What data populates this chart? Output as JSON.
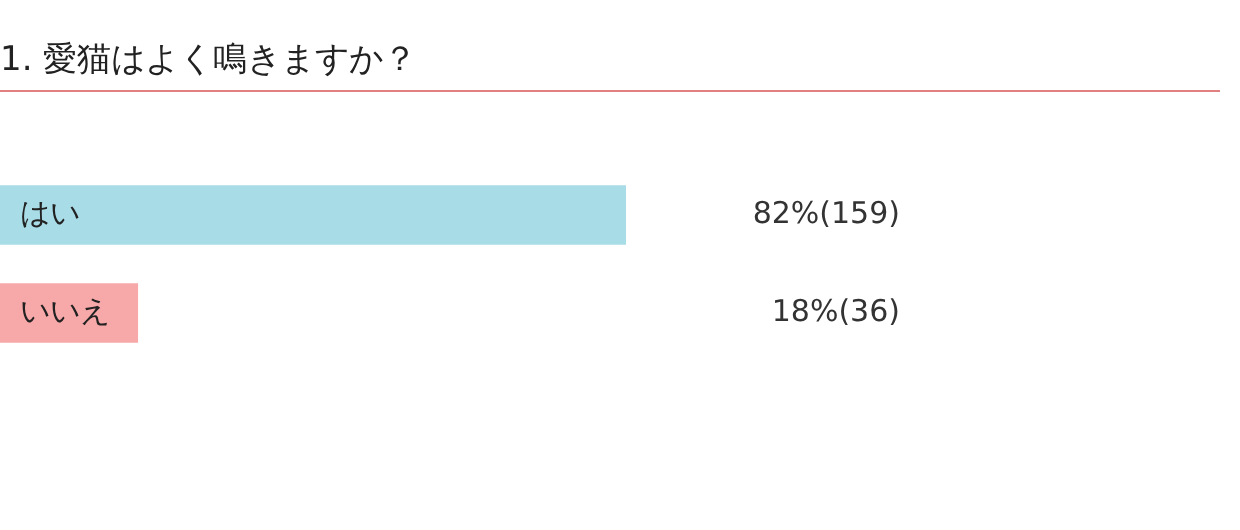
{
  "chart_data": {
    "type": "bar",
    "orientation": "horizontal",
    "title": "1. 愛猫はよく鳴きますか？",
    "categories": [
      "はい",
      "いいえ"
    ],
    "values": [
      82,
      18
    ],
    "colors": [
      "#a8dce6",
      "#f7a8a8"
    ],
    "value_labels": [
      "82%(159)",
      "18%(36)"
    ],
    "legend": false
  }
}
